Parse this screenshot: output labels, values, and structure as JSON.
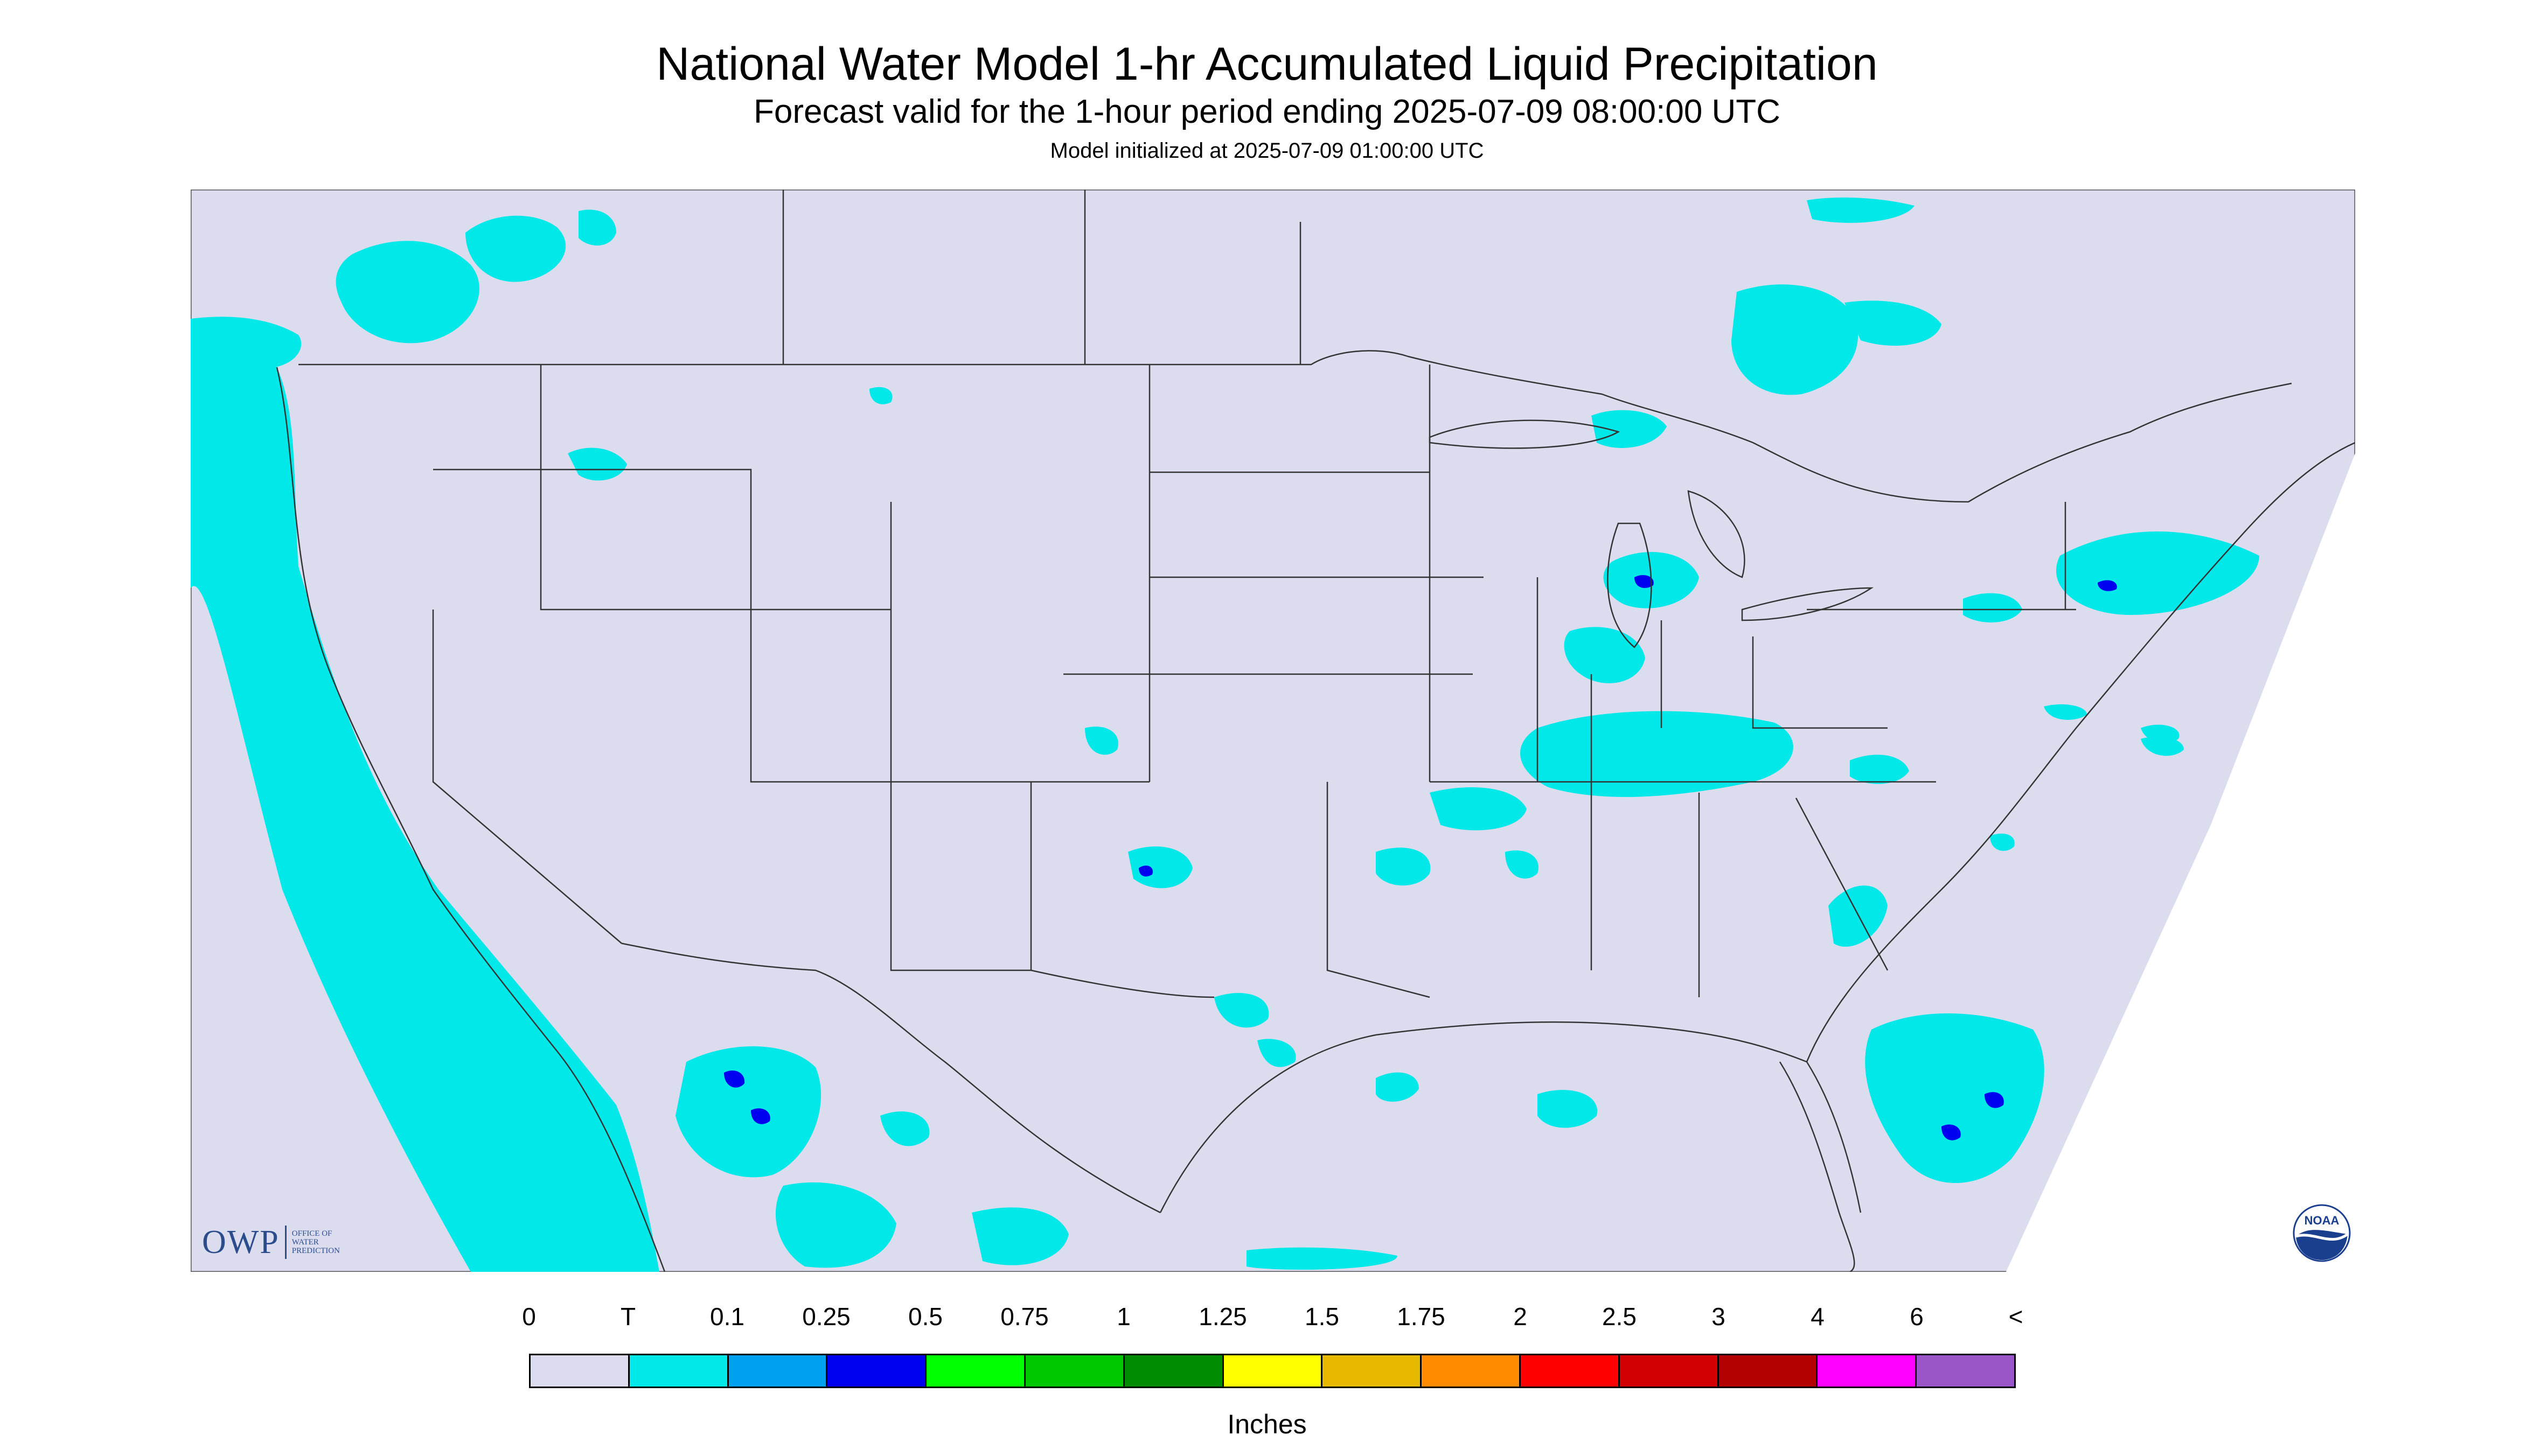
{
  "title": "National Water Model 1-hr Accumulated Liquid Precipitation",
  "subtitle": "Forecast valid for the 1-hour period ending 2025-07-09 08:00:00 UTC",
  "model_init": "Model initialized at 2025-07-09 01:00:00 UTC",
  "logos": {
    "owp_text": "OWP",
    "owp_small": [
      "OFFICE OF",
      "WATER",
      "PREDICTION"
    ],
    "noaa_text": "NOAA"
  },
  "legend": {
    "labels": [
      "0",
      "T",
      "0.1",
      "0.25",
      "0.5",
      "0.75",
      "1",
      "1.25",
      "1.5",
      "1.75",
      "2",
      "2.5",
      "3",
      "4",
      "6",
      "<"
    ],
    "colors": [
      "#dcdcef",
      "#00e8e8",
      "#00a0f0",
      "#0000f0",
      "#00ff00",
      "#00c800",
      "#008c00",
      "#ffff00",
      "#e6b900",
      "#ff8c00",
      "#ff0000",
      "#d20000",
      "#b40000",
      "#ff00ff",
      "#9a55c8"
    ],
    "units": "Inches"
  },
  "map_colors": {
    "background": "#dcdcef",
    "trace": "#00e8e8",
    "light": "#00a0f0",
    "moderate": "#0000f0"
  }
}
